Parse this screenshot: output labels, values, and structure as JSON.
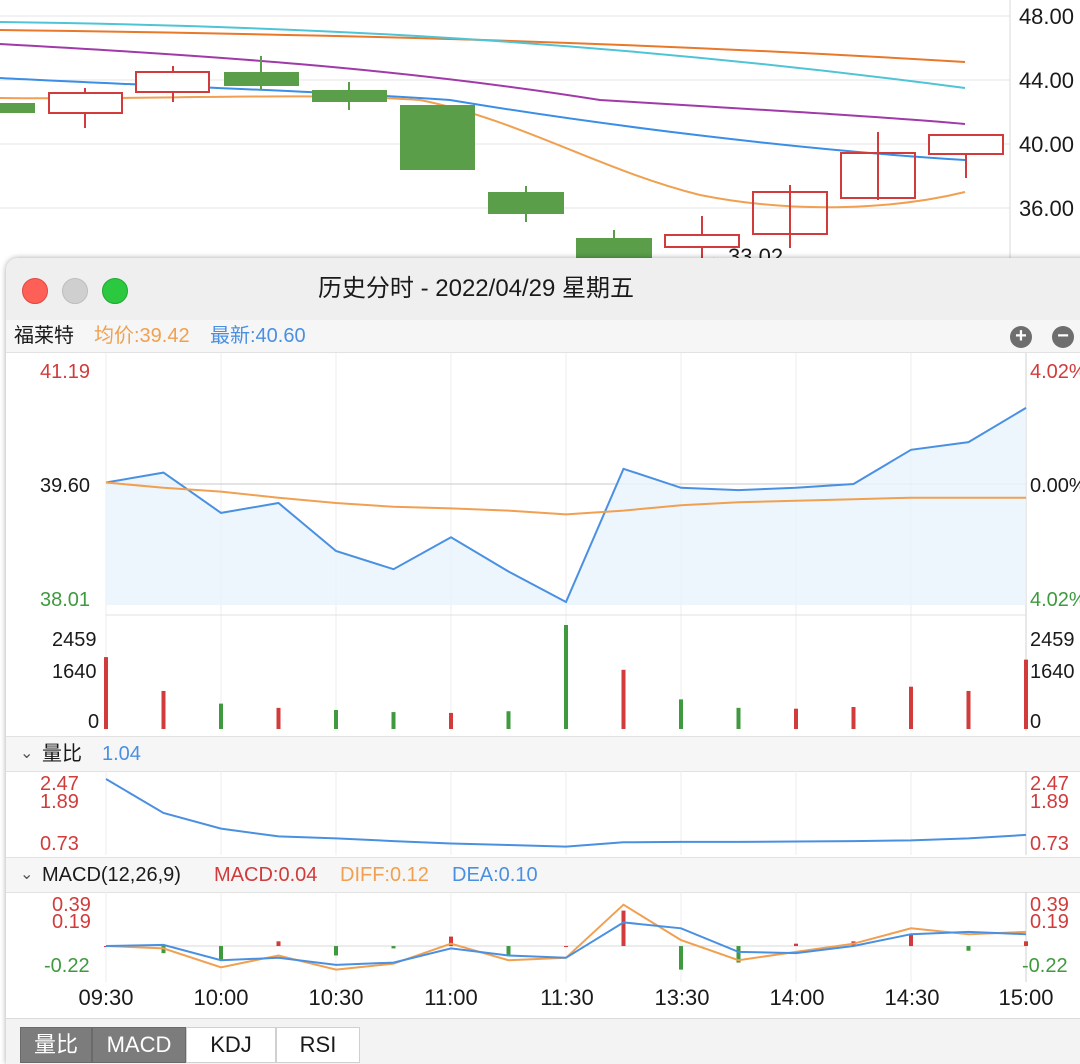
{
  "background_chart": {
    "y_axis_labels": [
      "48.00",
      "44.00",
      "40.00",
      "36.00"
    ],
    "low_marker": "←33.02"
  },
  "window": {
    "title": "历史分时 - 2022/04/29 星期五",
    "controls": [
      "close",
      "minimize",
      "maximize"
    ]
  },
  "info": {
    "stock_name": "福莱特",
    "avg_label": "均价:39.42",
    "latest_label": "最新:40.60",
    "zoom_in": "+",
    "zoom_out": "−"
  },
  "colors": {
    "up": "#d13b3b",
    "down": "#3f9a3f",
    "price_line": "#4a90e2",
    "avg_line": "#f0a050",
    "neutral": "#1a1a1a"
  },
  "price_axis": {
    "high": "41.19",
    "mid": "39.60",
    "low": "38.01",
    "pct_high": "4.02%",
    "pct_mid": "0.00%",
    "pct_low": "4.02%"
  },
  "volume_axis": {
    "top": "2459",
    "mid": "1640",
    "zero": "0"
  },
  "volume_ratio_section": {
    "label": "量比",
    "value": "1.04",
    "axis": [
      "2.47",
      "1.89",
      "0.73"
    ]
  },
  "macd_section": {
    "label": "MACD(12,26,9)",
    "macd": "MACD:0.04",
    "diff": "DIFF:0.12",
    "dea": "DEA:0.10",
    "axis": [
      "0.39",
      "0.19",
      "-0.22"
    ]
  },
  "time_axis": [
    "09:30",
    "10:00",
    "10:30",
    "11:00",
    "11:30",
    "13:30",
    "14:00",
    "14:30",
    "15:00"
  ],
  "bottom_tabs": [
    "量比",
    "MACD",
    "KDJ",
    "RSI"
  ],
  "active_tab": "MACD",
  "chart_data": {
    "type": "line",
    "x": [
      "09:30",
      "09:45",
      "10:00",
      "10:15",
      "10:30",
      "10:45",
      "11:00",
      "11:15",
      "11:30",
      "13:15",
      "13:30",
      "13:45",
      "14:00",
      "14:15",
      "14:30",
      "14:45",
      "15:00"
    ],
    "series": [
      {
        "name": "最新",
        "values": [
          39.62,
          39.75,
          39.22,
          39.35,
          38.72,
          38.48,
          38.9,
          38.45,
          38.05,
          39.8,
          39.55,
          39.52,
          39.55,
          39.6,
          40.05,
          40.15,
          40.6
        ]
      },
      {
        "name": "均价",
        "values": [
          39.62,
          39.55,
          39.5,
          39.42,
          39.35,
          39.3,
          39.28,
          39.25,
          39.2,
          39.25,
          39.32,
          39.36,
          39.38,
          39.4,
          39.42,
          39.42,
          39.42
        ]
      }
    ],
    "ylim": [
      38.01,
      41.19
    ],
    "volume": [
      1700,
      900,
      600,
      500,
      450,
      400,
      380,
      420,
      2459,
      1400,
      700,
      500,
      480,
      520,
      1000,
      900,
      1640
    ],
    "volume_ylim": [
      0,
      2459
    ],
    "volume_ratio": [
      2.47,
      1.6,
      1.2,
      1.0,
      0.95,
      0.88,
      0.82,
      0.78,
      0.74,
      0.85,
      0.86,
      0.86,
      0.87,
      0.88,
      0.9,
      0.95,
      1.04
    ],
    "volume_ratio_ylim": [
      0.73,
      2.47
    ],
    "diff": [
      0.0,
      -0.02,
      -0.18,
      -0.08,
      -0.2,
      -0.15,
      0.02,
      -0.12,
      -0.1,
      0.35,
      0.05,
      -0.12,
      -0.05,
      0.02,
      0.15,
      0.1,
      0.12
    ],
    "dea": [
      0.0,
      0.01,
      -0.12,
      -0.1,
      -0.16,
      -0.14,
      -0.02,
      -0.08,
      -0.1,
      0.2,
      0.15,
      -0.05,
      -0.06,
      0.0,
      0.1,
      0.12,
      0.1
    ],
    "macd_ylim": [
      -0.22,
      0.39
    ],
    "grid": true
  }
}
